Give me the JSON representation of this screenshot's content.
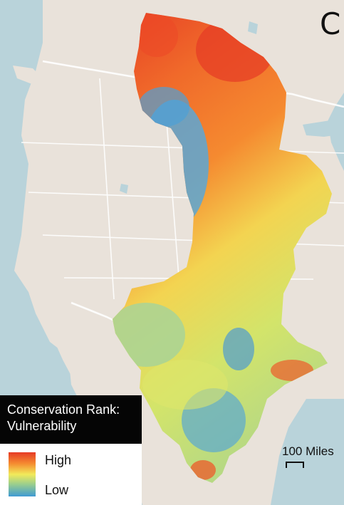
{
  "panel_letter": "C",
  "legend": {
    "title": "Conservation Rank: Vulnerability",
    "high_label": "High",
    "low_label": "Low",
    "colors": {
      "high": "#e63a25",
      "mid_high": "#f58a30",
      "mid": "#f2ea5a",
      "mid_low": "#9ccf8c",
      "low": "#3f9ad3"
    }
  },
  "scale": {
    "label": "100 Miles"
  },
  "map_colors": {
    "water": "#b9d3da",
    "land": "#e9e2da",
    "boundary": "#ffffff"
  }
}
